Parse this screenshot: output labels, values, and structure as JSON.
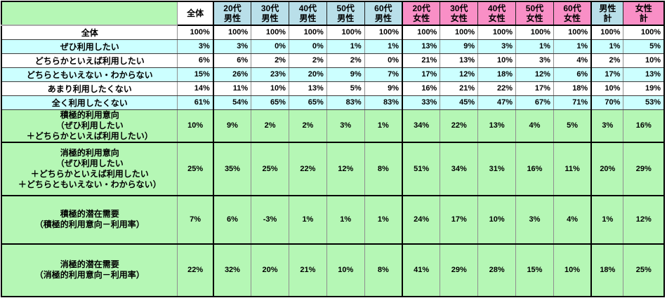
{
  "colors": {
    "male_header": "#B9DFE9",
    "female_header": "#F98FC6",
    "alt_row_cyan": "#CCFFFF",
    "summary_green": "#B5F7B5",
    "frame_border": "#000000"
  },
  "chart_data": {
    "type": "table",
    "title": "",
    "corner_label": "",
    "columns": [
      {
        "label": "全体",
        "group": "overall"
      },
      {
        "label": "20代\n男性",
        "group": "male"
      },
      {
        "label": "30代\n男性",
        "group": "male"
      },
      {
        "label": "40代\n男性",
        "group": "male"
      },
      {
        "label": "50代\n男性",
        "group": "male"
      },
      {
        "label": "60代\n男性",
        "group": "male"
      },
      {
        "label": "20代\n女性",
        "group": "female"
      },
      {
        "label": "30代\n女性",
        "group": "female"
      },
      {
        "label": "40代\n女性",
        "group": "female"
      },
      {
        "label": "50代\n女性",
        "group": "female"
      },
      {
        "label": "60代\n女性",
        "group": "female"
      },
      {
        "label": "男性\n計",
        "group": "male"
      },
      {
        "label": "女性\n計",
        "group": "female"
      }
    ],
    "rows": [
      {
        "label": "全体",
        "section": "breakdown",
        "values": [
          "100%",
          "100%",
          "100%",
          "100%",
          "100%",
          "100%",
          "100%",
          "100%",
          "100%",
          "100%",
          "100%",
          "100%",
          "100%"
        ]
      },
      {
        "label": "ぜひ利用したい",
        "section": "breakdown",
        "values": [
          "3%",
          "3%",
          "0%",
          "0%",
          "1%",
          "1%",
          "13%",
          "9%",
          "3%",
          "1%",
          "1%",
          "1%",
          "5%"
        ]
      },
      {
        "label": "どちらかといえば利用したい",
        "section": "breakdown",
        "values": [
          "6%",
          "6%",
          "2%",
          "2%",
          "2%",
          "0%",
          "21%",
          "13%",
          "10%",
          "3%",
          "4%",
          "2%",
          "10%"
        ]
      },
      {
        "label": "どちらともいえない・わからない",
        "section": "breakdown",
        "values": [
          "15%",
          "26%",
          "23%",
          "20%",
          "9%",
          "7%",
          "17%",
          "12%",
          "18%",
          "12%",
          "6%",
          "17%",
          "13%"
        ]
      },
      {
        "label": "あまり利用したくない",
        "section": "breakdown",
        "values": [
          "14%",
          "11%",
          "10%",
          "13%",
          "5%",
          "9%",
          "16%",
          "21%",
          "22%",
          "17%",
          "18%",
          "10%",
          "19%"
        ]
      },
      {
        "label": "全く利用したくない",
        "section": "breakdown",
        "values": [
          "61%",
          "54%",
          "65%",
          "65%",
          "83%",
          "83%",
          "33%",
          "45%",
          "47%",
          "67%",
          "71%",
          "70%",
          "53%"
        ]
      },
      {
        "label": "積極的利用意向\n（ぜひ利用したい\n＋どちらかといえば利用したい）",
        "section": "summary",
        "values": [
          "10%",
          "9%",
          "2%",
          "2%",
          "3%",
          "1%",
          "34%",
          "22%",
          "13%",
          "4%",
          "5%",
          "3%",
          "16%"
        ]
      },
      {
        "label": "消極的利用意向\n（ぜひ利用したい\n＋どちらかといえば利用したい\n＋どちらともいえない・わからない）",
        "section": "summary",
        "values": [
          "25%",
          "35%",
          "25%",
          "22%",
          "12%",
          "8%",
          "51%",
          "34%",
          "31%",
          "16%",
          "11%",
          "20%",
          "29%"
        ]
      },
      {
        "label": "積極的潜在需要\n（積極的利用意向－利用率）",
        "section": "summary",
        "values": [
          "7%",
          "6%",
          "-3%",
          "1%",
          "1%",
          "1%",
          "24%",
          "17%",
          "10%",
          "3%",
          "4%",
          "1%",
          "12%"
        ]
      },
      {
        "label": "消極的潜在需要\n（消極的利用意向－利用率）",
        "section": "summary",
        "values": [
          "22%",
          "32%",
          "20%",
          "21%",
          "10%",
          "8%",
          "41%",
          "29%",
          "28%",
          "15%",
          "10%",
          "18%",
          "25%"
        ]
      }
    ]
  }
}
